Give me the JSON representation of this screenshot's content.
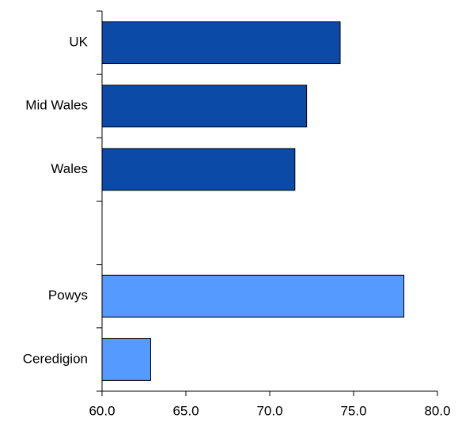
{
  "chart_data": {
    "type": "barh",
    "categories": [
      "UK",
      "Mid Wales",
      "Wales",
      null,
      "Powys",
      "Ceredigion"
    ],
    "values": [
      74.2,
      72.2,
      71.5,
      null,
      78.0,
      62.9
    ],
    "colors": [
      "#0b4aa6",
      "#0b4aa6",
      "#0b4aa6",
      null,
      "#559bff",
      "#559bff"
    ],
    "xlim": [
      60,
      80
    ],
    "xticks": [
      {
        "value": 60,
        "label": "60.0"
      },
      {
        "value": 65,
        "label": "65.0"
      },
      {
        "value": 70,
        "label": "70.0"
      },
      {
        "value": 75,
        "label": "75.0"
      },
      {
        "value": 80,
        "label": "80.0"
      }
    ]
  }
}
